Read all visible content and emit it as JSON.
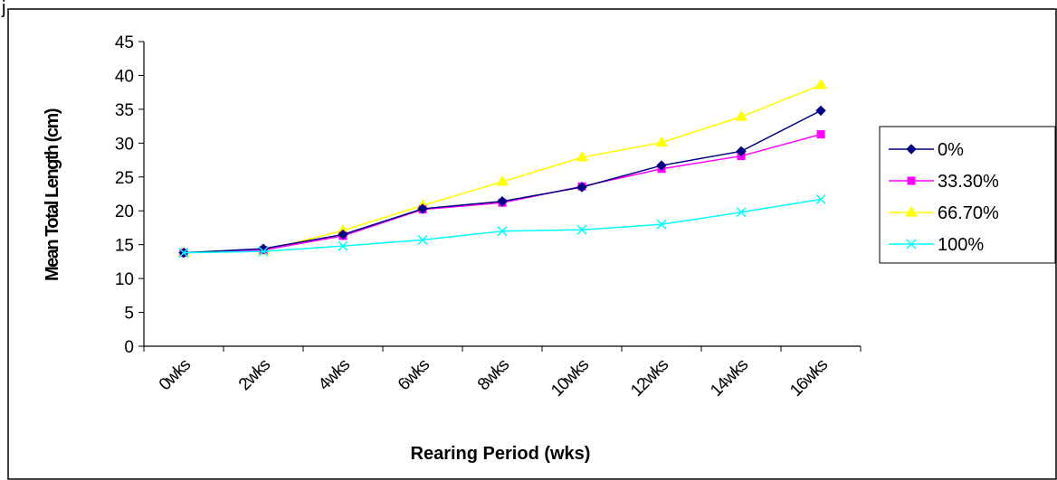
{
  "page_letter": "j",
  "chart_data": {
    "type": "line",
    "xlabel": "Rearing Period (wks)",
    "ylabel": "Mean Total Length (cm)",
    "ylim": [
      0,
      45
    ],
    "y_ticks": [
      0,
      5,
      10,
      15,
      20,
      25,
      30,
      35,
      40,
      45
    ],
    "x_tick_labels": [
      "0wks",
      "2wks",
      "4wks",
      "6wks",
      "8wks",
      "10wks",
      "12wks",
      "14wks",
      "16wks"
    ],
    "x": [
      1,
      3,
      5,
      7,
      9,
      11,
      13,
      15,
      17
    ],
    "xlim": [
      0,
      18
    ],
    "grid": false,
    "legend_position": "right",
    "series": [
      {
        "name": "0%",
        "color": "#000080",
        "marker": "diamond",
        "values": [
          13.8,
          14.4,
          16.5,
          20.3,
          21.4,
          23.5,
          26.7,
          28.8,
          34.8
        ]
      },
      {
        "name": "33.30%",
        "color": "#FF00FF",
        "marker": "square",
        "values": [
          13.8,
          14.2,
          16.3,
          20.2,
          21.2,
          23.6,
          26.2,
          28.1,
          31.3
        ]
      },
      {
        "name": "66.70%",
        "color": "#FFFF00",
        "marker": "triangle",
        "values": [
          13.8,
          14.1,
          17.1,
          20.8,
          24.3,
          27.9,
          30.1,
          33.9,
          38.6
        ]
      },
      {
        "name": "100%",
        "color": "#00FFFF",
        "marker": "x",
        "values": [
          13.8,
          14.0,
          14.8,
          15.7,
          17.0,
          17.2,
          18.0,
          19.8,
          21.7
        ]
      }
    ]
  }
}
